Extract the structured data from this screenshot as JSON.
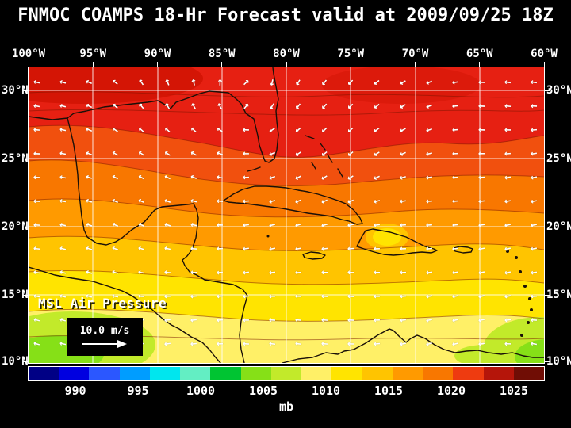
{
  "title": "FNMOC COAMPS 18-Hr Forecast valid at 2009/09/25 18Z",
  "map": {
    "overlay_label": "MSL Air Pressure",
    "wind_scale_label": "10.0 m/s",
    "lon_labels": [
      "100°W",
      "95°W",
      "90°W",
      "85°W",
      "80°W",
      "75°W",
      "70°W",
      "65°W",
      "60°W"
    ],
    "lat_labels": [
      "30°N",
      "25°N",
      "20°N",
      "15°N",
      "10°N"
    ]
  },
  "colorbar": {
    "unit": "mb",
    "tick_labels": [
      "990",
      "995",
      "1000",
      "1005",
      "1010",
      "1015",
      "1020",
      "1025"
    ],
    "colors": [
      "#000085",
      "#0000e0",
      "#2b57ff",
      "#009dff",
      "#00e6ee",
      "#63eec3",
      "#00c432",
      "#86e017",
      "#c2ea2a",
      "#fff067",
      "#ffe400",
      "#ffc400",
      "#ff9a00",
      "#f87700",
      "#ee3b10",
      "#b5150a",
      "#700d05"
    ]
  },
  "chart_data": {
    "type": "heatmap",
    "title": "FNMOC COAMPS 18-Hr Forecast valid at 2009/09/25 18Z",
    "variable": "MSL Air Pressure",
    "unit": "mb",
    "wind_scale": "10.0 m/s",
    "lon_ticks_deg_w": [
      100,
      95,
      90,
      85,
      80,
      75,
      70,
      65,
      60
    ],
    "lat_ticks_deg_n": [
      30,
      25,
      20,
      15,
      10
    ],
    "colorbar_tick_values_mb": [
      990,
      995,
      1000,
      1005,
      1010,
      1015,
      1020,
      1025
    ],
    "approx_field": [
      {
        "region": "northern Gulf of Mexico and western Atlantic (25-32N)",
        "pressure_mb": "1018-1021"
      },
      {
        "region": "central Gulf, Florida and Bahamas (22-25N)",
        "pressure_mb": "1014-1018"
      },
      {
        "region": "Caribbean Sea (15-22N)",
        "pressure_mb": "1010-1014"
      },
      {
        "region": "southern margin 10-14N, eastern Pacific and Venezuela coast",
        "pressure_mb": "1006-1010"
      }
    ],
    "wind_field": "white wind vectors; predominantly easterly trade flow south of ~22N, anticyclonic flow around high pressure to the north"
  }
}
